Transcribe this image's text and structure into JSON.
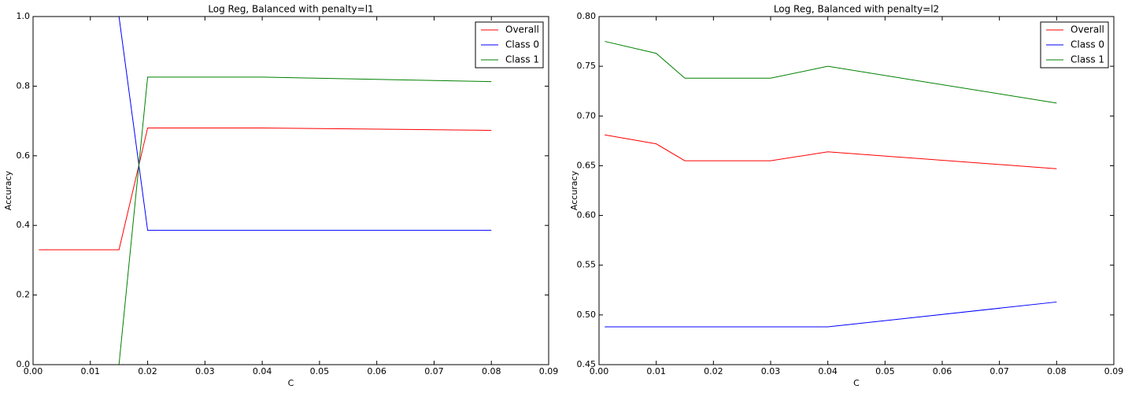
{
  "chart_data": [
    {
      "type": "line",
      "title": "Log Reg, Balanced with penalty=l1",
      "x_label": "C",
      "y_label": "Accuracy",
      "x": [
        0.001,
        0.015,
        0.02,
        0.04,
        0.08
      ],
      "series": [
        {
          "name": "Overall",
          "color": "#ff0000",
          "values": [
            0.33,
            0.33,
            0.68,
            0.68,
            0.673
          ]
        },
        {
          "name": "Class 0",
          "color": "#0000ff",
          "values": [
            1.0,
            1.0,
            0.386,
            0.386,
            0.386
          ]
        },
        {
          "name": "Class 1",
          "color": "#008000",
          "values": [
            0.0,
            0.0,
            0.826,
            0.826,
            0.813
          ]
        }
      ],
      "xlim": [
        0,
        0.09
      ],
      "xticks": [
        {
          "value": 0,
          "label": "0.00"
        },
        0.01,
        0.02,
        0.03,
        0.04,
        0.05,
        0.06,
        0.07,
        0.08,
        0.09
      ],
      "ylim": [
        0,
        1
      ],
      "yticks": [
        {
          "value": 0,
          "label": "0.0"
        },
        0.2,
        0.4,
        0.6,
        0.8,
        {
          "value": 1,
          "label": "1.0"
        }
      ],
      "legend": "upper right"
    },
    {
      "type": "line",
      "title": "Log Reg, Balanced with penalty=l2",
      "x_label": "C",
      "y_label": "Accuracy",
      "x": [
        0.001,
        0.01,
        0.015,
        0.03,
        0.04,
        0.08
      ],
      "series": [
        {
          "name": "Overall",
          "color": "#ff0000",
          "values": [
            0.681,
            0.672,
            0.655,
            0.655,
            0.664,
            0.647
          ]
        },
        {
          "name": "Class 0",
          "color": "#0000ff",
          "values": [
            0.488,
            0.488,
            0.488,
            0.488,
            0.488,
            0.513
          ]
        },
        {
          "name": "Class 1",
          "color": "#008000",
          "values": [
            0.775,
            0.763,
            0.738,
            0.738,
            0.75,
            0.713
          ]
        }
      ],
      "xlim": [
        0,
        0.09
      ],
      "xticks": [
        {
          "value": 0,
          "label": "0.00"
        },
        0.01,
        0.02,
        0.03,
        0.04,
        0.05,
        0.06,
        0.07,
        0.08,
        0.09
      ],
      "ylim": [
        0.45,
        0.8
      ],
      "yticks": [
        0.45,
        {
          "value": 0.5,
          "label": "0.50"
        },
        0.55,
        {
          "value": 0.6,
          "label": "0.60"
        },
        0.65,
        {
          "value": 0.7,
          "label": "0.70"
        },
        0.75,
        {
          "value": 0.8,
          "label": "0.80"
        }
      ],
      "legend": "upper right"
    }
  ]
}
